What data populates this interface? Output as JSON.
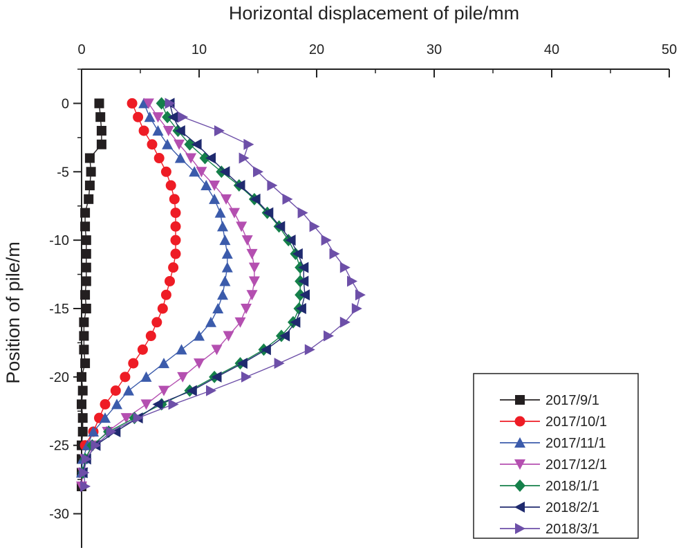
{
  "chart_data": {
    "type": "line",
    "title": "",
    "xlabel": "Horizontal displacement of pile/mm",
    "ylabel": "Position of pile/m",
    "xlim": [
      0,
      50
    ],
    "ylim": [
      -32.5,
      2.5
    ],
    "x_ticks": [
      0,
      10,
      20,
      30,
      40,
      50
    ],
    "y_ticks": [
      0,
      -5,
      -10,
      -15,
      -20,
      -25,
      -30
    ],
    "x_tick_labels": [
      "0",
      "10",
      "20",
      "30",
      "40",
      "50"
    ],
    "y_tick_labels": [
      "0",
      "-5",
      "-10",
      "-15",
      "-20",
      "-25",
      "-30"
    ],
    "x_axis_position": "top",
    "grid": false,
    "legend_position": "bottom-right",
    "series": [
      {
        "name": "2017/9/1",
        "color": "#231f20",
        "marker": "square",
        "x": [
          1.5,
          1.6,
          1.7,
          1.7,
          0.7,
          0.8,
          0.7,
          0.6,
          0.3,
          0.3,
          0.4,
          0.4,
          0.4,
          0.4,
          0.3,
          0.4,
          0.2,
          0.2,
          0.2,
          0.3,
          0.0,
          0.1,
          0.0,
          0.1,
          0.1,
          0.0,
          0.0,
          0.0,
          0.0
        ],
        "y": [
          0,
          -1,
          -2,
          -3,
          -4,
          -5,
          -6,
          -7,
          -8,
          -9,
          -10,
          -11,
          -12,
          -13,
          -14,
          -15,
          -16,
          -17,
          -18,
          -19,
          -20,
          -21,
          -22,
          -23,
          -24,
          -25,
          -26,
          -27,
          -28
        ]
      },
      {
        "name": "2017/10/1",
        "color": "#ee1c25",
        "marker": "circle",
        "x": [
          4.3,
          4.8,
          5.3,
          6.0,
          6.6,
          7.2,
          7.6,
          7.9,
          8.0,
          8.0,
          8.0,
          8.0,
          7.8,
          7.5,
          7.2,
          6.9,
          6.4,
          5.9,
          5.2,
          4.4,
          3.7,
          2.9,
          2.0,
          1.5,
          1.0,
          0.3
        ],
        "y": [
          0,
          -1,
          -2,
          -3,
          -4,
          -5,
          -6,
          -7,
          -8,
          -9,
          -10,
          -11,
          -12,
          -13,
          -14,
          -15,
          -16,
          -17,
          -18,
          -19,
          -20,
          -21,
          -22,
          -23,
          -24,
          -25
        ]
      },
      {
        "name": "2017/11/1",
        "color": "#3b5bab",
        "marker": "triangle-up",
        "x": [
          5.3,
          5.8,
          6.5,
          7.3,
          8.4,
          9.6,
          10.6,
          11.3,
          11.8,
          12.0,
          12.2,
          12.4,
          12.4,
          12.2,
          12.0,
          11.6,
          11.0,
          10.0,
          8.5,
          7.0,
          5.5,
          4.0,
          3.0,
          2.0,
          1.0,
          0.5,
          0.1,
          0.0
        ],
        "y": [
          0,
          -1,
          -2,
          -3,
          -4,
          -5,
          -6,
          -7,
          -8,
          -9,
          -10,
          -11,
          -12,
          -13,
          -14,
          -15,
          -16,
          -17,
          -18,
          -19,
          -20,
          -21,
          -22,
          -23,
          -24,
          -25,
          -26,
          -27
        ]
      },
      {
        "name": "2017/12/1",
        "color": "#b44fb0",
        "marker": "triangle-down",
        "x": [
          5.7,
          6.5,
          7.4,
          8.3,
          9.3,
          10.2,
          11.3,
          12.3,
          13.0,
          13.6,
          14.1,
          14.5,
          14.7,
          14.7,
          14.5,
          14.0,
          13.5,
          12.5,
          11.5,
          10.0,
          8.6,
          7.0,
          5.5,
          3.8,
          2.2,
          1.0,
          0.3,
          0.1,
          0.0
        ],
        "y": [
          0,
          -1,
          -2,
          -3,
          -4,
          -5,
          -6,
          -7,
          -8,
          -9,
          -10,
          -11,
          -12,
          -13,
          -14,
          -15,
          -16,
          -17,
          -18,
          -19,
          -20,
          -21,
          -22,
          -23,
          -24,
          -25,
          -26,
          -27,
          -28
        ]
      },
      {
        "name": "2018/1/1",
        "color": "#15804a",
        "marker": "diamond",
        "x": [
          6.8,
          7.3,
          8.2,
          9.2,
          10.5,
          11.9,
          13.4,
          14.7,
          15.8,
          16.8,
          17.6,
          18.2,
          18.6,
          18.6,
          18.6,
          18.5,
          18.0,
          17.0,
          15.5,
          13.5,
          11.3,
          9.2,
          6.8,
          4.5,
          2.3,
          0.9,
          0.3,
          0.1
        ],
        "y": [
          0,
          -1,
          -2,
          -3,
          -4,
          -5,
          -6,
          -7,
          -8,
          -9,
          -10,
          -11,
          -12,
          -13,
          -14,
          -15,
          -16,
          -17,
          -18,
          -19,
          -20,
          -21,
          -22,
          -23,
          -24,
          -25,
          -26,
          -27
        ]
      },
      {
        "name": "2018/2/1",
        "color": "#1f2a6e",
        "marker": "triangle-left",
        "x": [
          7.5,
          7.8,
          8.4,
          9.8,
          11.0,
          12.2,
          13.5,
          14.8,
          15.9,
          16.9,
          17.8,
          18.4,
          18.9,
          18.9,
          19.0,
          18.7,
          18.2,
          17.3,
          15.7,
          13.7,
          11.5,
          9.4,
          6.5,
          4.8,
          2.9,
          1.2,
          0.4,
          0.1
        ],
        "y": [
          0,
          -1,
          -2,
          -3,
          -4,
          -5,
          -6,
          -7,
          -8,
          -9,
          -10,
          -11,
          -12,
          -13,
          -14,
          -15,
          -16,
          -17,
          -18,
          -19,
          -20,
          -21,
          -22,
          -23,
          -24,
          -25,
          -26,
          -27
        ]
      },
      {
        "name": "2018/3/1",
        "color": "#6d4fa8",
        "marker": "triangle-right",
        "x": [
          7.5,
          8.6,
          11.7,
          14.2,
          13.8,
          15.0,
          16.2,
          17.5,
          18.8,
          19.8,
          20.8,
          21.5,
          22.4,
          23.0,
          23.7,
          23.4,
          22.4,
          21.0,
          19.4,
          16.8,
          14.0,
          11.0,
          7.8,
          4.8,
          2.5,
          1.2,
          0.4,
          0.2,
          0.3
        ],
        "y": [
          0,
          -1,
          -2,
          -3,
          -4,
          -5,
          -6,
          -7,
          -8,
          -9,
          -10,
          -11,
          -12,
          -13,
          -14,
          -15,
          -16,
          -17,
          -18,
          -19,
          -20,
          -21,
          -22,
          -23,
          -24,
          -25,
          -26,
          -27,
          -28
        ]
      }
    ]
  }
}
